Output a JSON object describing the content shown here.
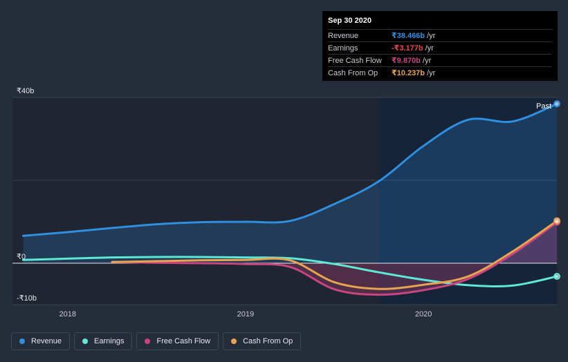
{
  "tooltip": {
    "date": "Sep 30 2020",
    "rows": [
      {
        "label": "Revenue",
        "value": "₹38.466b",
        "unit": "/yr",
        "color": "#2f8fe0"
      },
      {
        "label": "Earnings",
        "value": "-₹3.177b",
        "unit": "/yr",
        "color": "#f0404b"
      },
      {
        "label": "Free Cash Flow",
        "value": "₹9.870b",
        "unit": "/yr",
        "color": "#c8457f"
      },
      {
        "label": "Cash From Op",
        "value": "₹10.237b",
        "unit": "/yr",
        "color": "#e9a44f"
      }
    ]
  },
  "legend": [
    {
      "label": "Revenue",
      "color": "#2f8fe0"
    },
    {
      "label": "Earnings",
      "color": "#5ee8d6"
    },
    {
      "label": "Free Cash Flow",
      "color": "#c8457f"
    },
    {
      "label": "Cash From Op",
      "color": "#e9a44f"
    }
  ],
  "chart_data": {
    "type": "line",
    "title": "",
    "xlabel": "",
    "ylabel": "",
    "y_unit": "₹ billions",
    "ylim": [
      -10,
      40
    ],
    "y_tick_labels": [
      {
        "value": 40,
        "label": "₹40b"
      },
      {
        "value": 0,
        "label": "₹0"
      },
      {
        "value": -10,
        "label": "-₹10b"
      }
    ],
    "x_tick_labels": [
      {
        "value": 2018,
        "label": "2018"
      },
      {
        "value": 2019,
        "label": "2019"
      },
      {
        "value": 2020,
        "label": "2020"
      }
    ],
    "xlim": [
      2017.69,
      2020.75
    ],
    "past_region_start": 2019.75,
    "past_label": "Past",
    "grid": true,
    "series": [
      {
        "name": "Revenue",
        "color": "#2f8fe0",
        "fill": true,
        "x": [
          2017.75,
          2018.0,
          2018.25,
          2018.5,
          2018.75,
          2019.0,
          2019.25,
          2019.5,
          2019.75,
          2020.0,
          2020.25,
          2020.5,
          2020.75
        ],
        "y": [
          6.6,
          7.5,
          8.5,
          9.4,
          9.9,
          10.0,
          10.2,
          14.3,
          19.8,
          28.3,
          34.6,
          34.2,
          38.466
        ]
      },
      {
        "name": "Earnings",
        "color": "#5ee8d6",
        "fill": false,
        "x": [
          2017.75,
          2018.0,
          2018.25,
          2018.5,
          2018.75,
          2019.0,
          2019.25,
          2019.5,
          2019.75,
          2020.0,
          2020.25,
          2020.5,
          2020.75
        ],
        "y": [
          0.8,
          1.1,
          1.4,
          1.5,
          1.5,
          1.4,
          1.2,
          -0.2,
          -2.2,
          -4.0,
          -5.3,
          -5.4,
          -3.177
        ]
      },
      {
        "name": "Free Cash Flow",
        "color": "#c8457f",
        "fill": true,
        "x": [
          2018.25,
          2018.5,
          2018.75,
          2019.0,
          2019.25,
          2019.5,
          2019.75,
          2020.0,
          2020.25,
          2020.5,
          2020.75
        ],
        "y": [
          0.3,
          0.1,
          0.0,
          -0.2,
          -0.9,
          -6.3,
          -7.6,
          -6.5,
          -3.8,
          2.2,
          9.87
        ]
      },
      {
        "name": "Cash From Op",
        "color": "#e9a44f",
        "fill": false,
        "x": [
          2018.25,
          2018.5,
          2018.75,
          2019.0,
          2019.25,
          2019.5,
          2019.75,
          2020.0,
          2020.25,
          2020.5,
          2020.75
        ],
        "y": [
          0.3,
          0.5,
          0.7,
          0.8,
          0.7,
          -4.6,
          -6.2,
          -5.2,
          -3.2,
          2.8,
          10.237
        ]
      }
    ]
  }
}
